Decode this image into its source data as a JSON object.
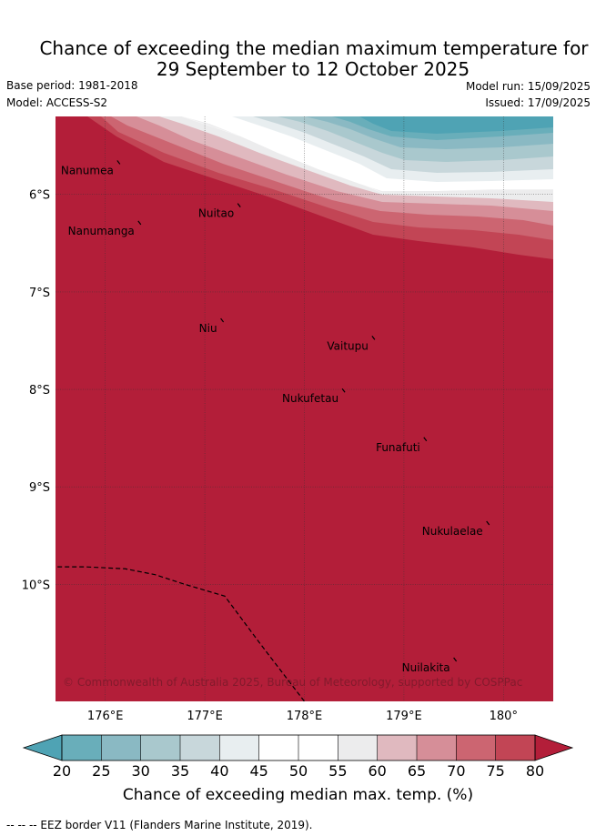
{
  "title_line1": "Chance of exceeding the median maximum temperature for",
  "title_line2": "29 September to 12 October 2025",
  "base_period": "Base period: 1981-2018",
  "model": "Model: ACCESS-S2",
  "model_run": "Model run: 15/09/2025",
  "issued": "Issued: 17/09/2025",
  "map": {
    "lon_range": [
      175.5,
      180.5
    ],
    "lat_range": [
      -11.2,
      -5.2
    ],
    "lat_ticks": [
      {
        "value": -6,
        "label": "6°S"
      },
      {
        "value": -7,
        "label": "7°S"
      },
      {
        "value": -8,
        "label": "8°S"
      },
      {
        "value": -9,
        "label": "9°S"
      },
      {
        "value": -10,
        "label": "10°S"
      }
    ],
    "lon_ticks": [
      {
        "value": 176,
        "label": "176°E"
      },
      {
        "value": 177,
        "label": "177°E"
      },
      {
        "value": 178,
        "label": "178°E"
      },
      {
        "value": 179,
        "label": "179°E"
      },
      {
        "value": 180,
        "label": "180°"
      }
    ],
    "places": [
      {
        "name": "Nanumea",
        "lon": 176.12,
        "lat": -5.68
      },
      {
        "name": "Nuitao",
        "lon": 177.33,
        "lat": -6.12
      },
      {
        "name": "Nanumanga",
        "lon": 176.33,
        "lat": -6.3
      },
      {
        "name": "Niu",
        "lon": 177.16,
        "lat": -7.3
      },
      {
        "name": "Vaitupu",
        "lon": 178.68,
        "lat": -7.48
      },
      {
        "name": "Nukufetau",
        "lon": 178.38,
        "lat": -8.02
      },
      {
        "name": "Funafuti",
        "lon": 179.2,
        "lat": -8.52
      },
      {
        "name": "Nukulaelae",
        "lon": 179.83,
        "lat": -9.38
      },
      {
        "name": "Nuilakita",
        "lon": 179.5,
        "lat": -10.78
      }
    ],
    "eez_border": [
      [
        175.52,
        -9.82
      ],
      [
        175.8,
        -9.82
      ],
      [
        176.2,
        -9.84
      ],
      [
        176.5,
        -9.9
      ],
      [
        176.8,
        -10.0
      ],
      [
        177.2,
        -10.12
      ],
      [
        177.55,
        -10.6
      ],
      [
        178.0,
        -11.2
      ]
    ],
    "copyright": "© Commonwealth of Australia 2025, Bureau of Meteorology, supported by COSPPac"
  },
  "colorbar": {
    "ticks": [
      "20",
      "25",
      "30",
      "35",
      "40",
      "45",
      "50",
      "55",
      "60",
      "65",
      "70",
      "75",
      "80"
    ],
    "colors": [
      "#69aeba",
      "#8ab9c3",
      "#a9c8cd",
      "#c8d7db",
      "#e8eef0",
      "#ffffff",
      "#ffffff",
      "#ececed",
      "#e0b9bf",
      "#d68e98",
      "#cc6571",
      "#c24555"
    ],
    "under_color": "#4fa3b4",
    "over_color": "#b31e39",
    "title": "Chance of exceeding median max. temp. (%)"
  },
  "legend_note": "--  --  -- EEZ border V11 (Flanders Marine Institute, 2019)."
}
